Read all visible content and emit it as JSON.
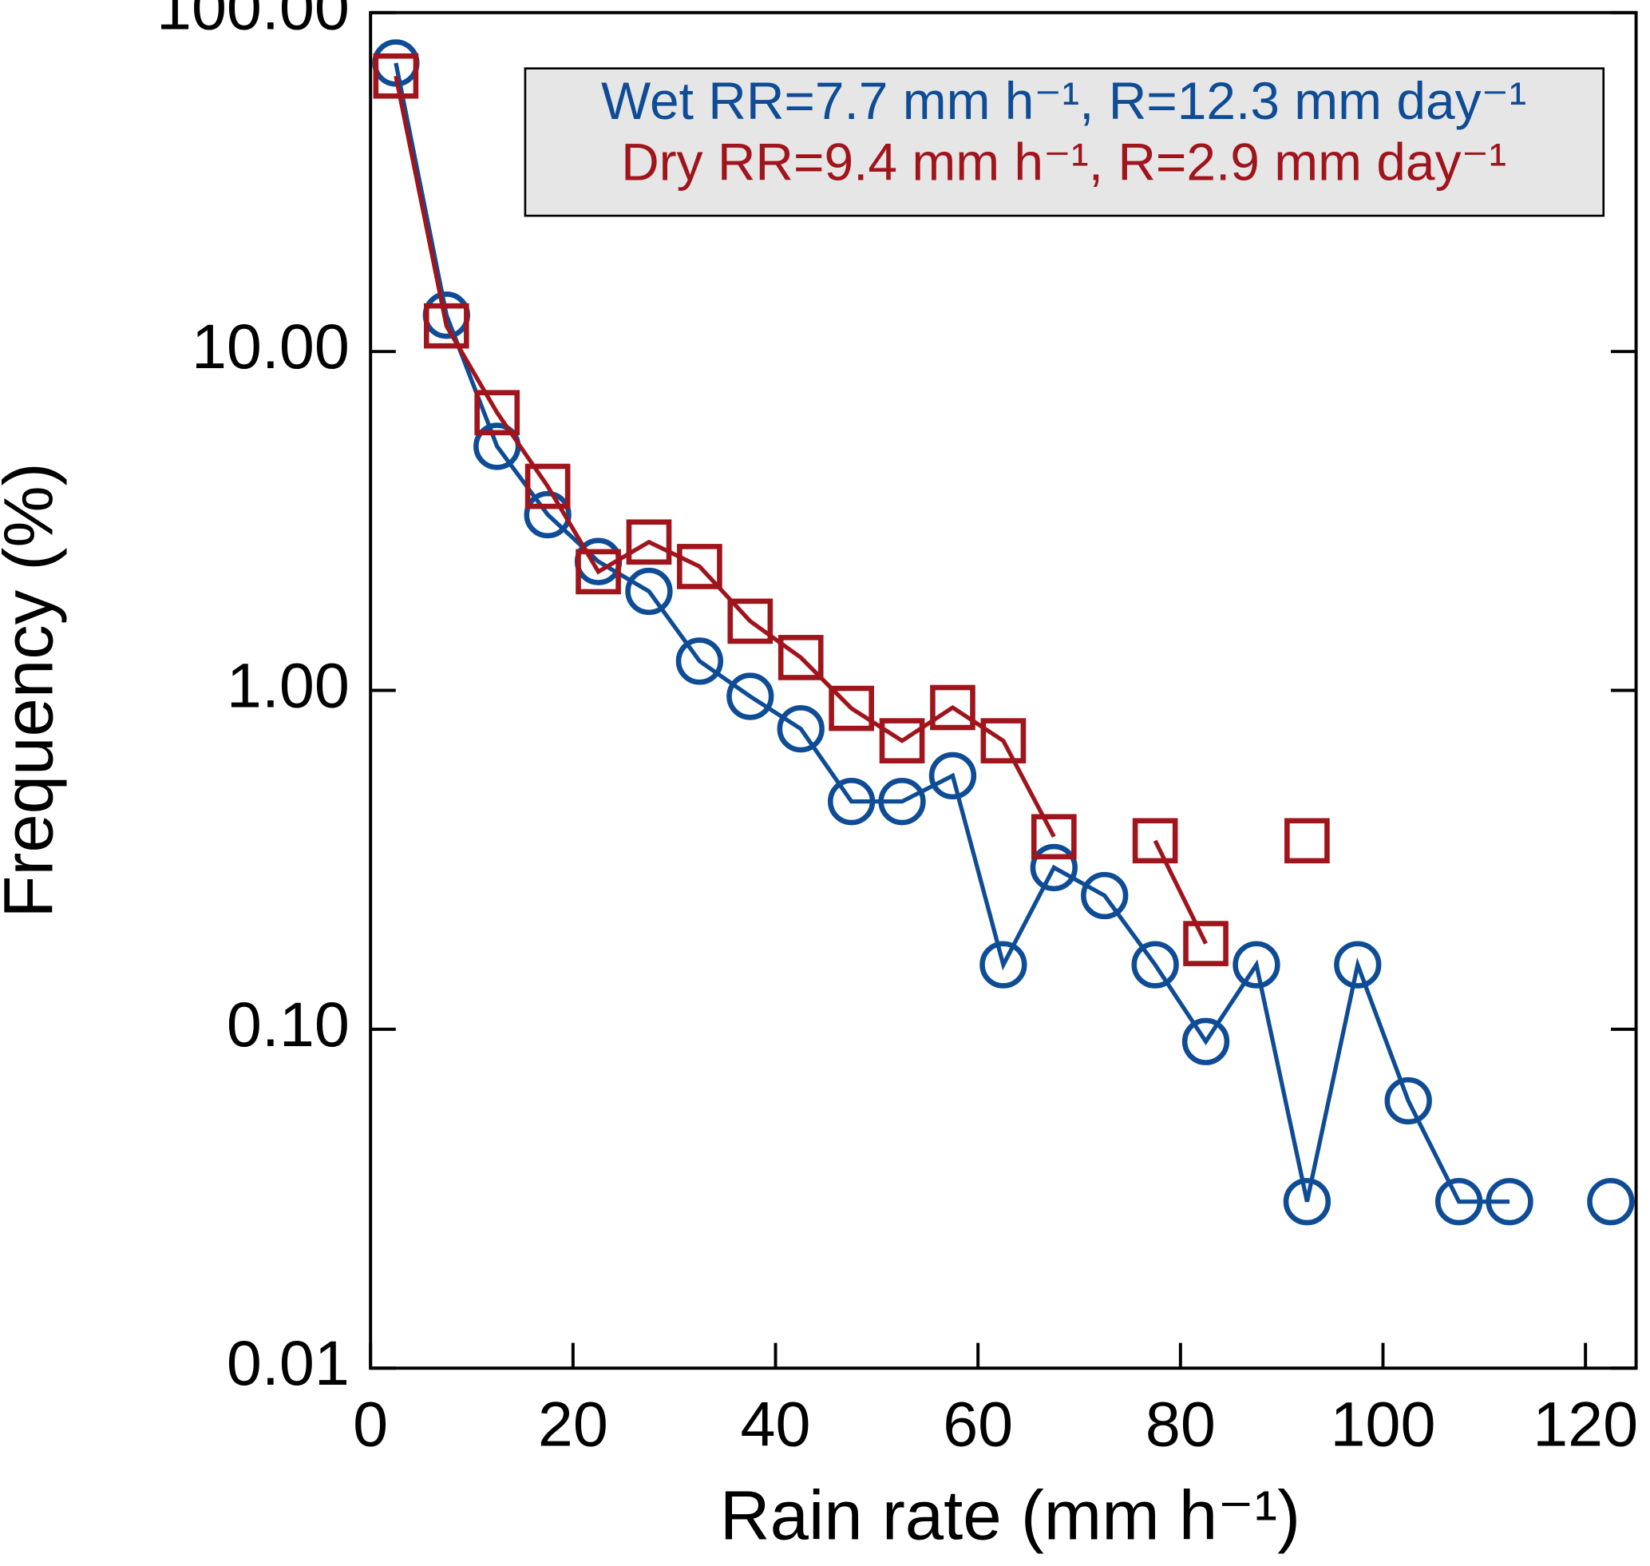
{
  "chart_data": {
    "type": "line",
    "xlabel": "Rain rate  (mm h⁻¹)",
    "ylabel": "Frequency (%)",
    "x": [
      2.5,
      7.5,
      12.5,
      17.5,
      22.5,
      27.5,
      32.5,
      37.5,
      42.5,
      47.5,
      52.5,
      57.5,
      62.5,
      67.5,
      72.5,
      77.5,
      82.5,
      87.5,
      92.5,
      97.5,
      102.5,
      107.5,
      112.5,
      117.5,
      122.5
    ],
    "series": [
      {
        "name": "Wet RR=7.7 mm h⁻¹, R=12.3 mm day⁻¹",
        "color": "#0f4c96",
        "marker": "circle",
        "values": [
          71,
          12.8,
          5.25,
          3.3,
          2.4,
          1.96,
          1.22,
          0.96,
          0.77,
          0.47,
          0.47,
          0.56,
          0.155,
          0.3,
          0.248,
          0.155,
          0.092,
          0.155,
          0.031,
          0.155,
          0.0615,
          0.031,
          0.031,
          null,
          0.031
        ]
      },
      {
        "name": "Dry RR=9.4 mm h⁻¹, R=2.9 mm day⁻¹",
        "color": "#a0141c",
        "marker": "square",
        "values": [
          65,
          11.9,
          6.6,
          4.0,
          2.24,
          2.74,
          2.32,
          1.6,
          1.25,
          0.885,
          0.71,
          0.89,
          0.71,
          0.37,
          null,
          0.36,
          0.179,
          null,
          0.36,
          null,
          null,
          null,
          null,
          null,
          null
        ]
      }
    ],
    "xlim": [
      0,
      125
    ],
    "xticks": [
      0,
      20,
      40,
      60,
      80,
      100,
      120
    ],
    "ylim": [
      0.01,
      100
    ],
    "yscale": "log",
    "yticks": [
      {
        "value": 0.01,
        "label": "0.01"
      },
      {
        "value": 0.1,
        "label": "0.10"
      },
      {
        "value": 1,
        "label": "1.00"
      },
      {
        "value": 10,
        "label": "10.00"
      },
      {
        "value": 100,
        "label": "100.00"
      }
    ],
    "legend": "upper right"
  }
}
